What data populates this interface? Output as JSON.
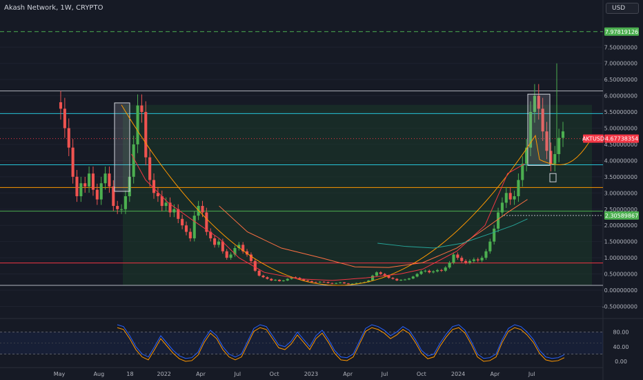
{
  "header": {
    "title": "Akash Network, 1W, CRYPTO",
    "currency_button": "USD"
  },
  "price_axis": {
    "ticks": [
      {
        "v": 7.5,
        "label": "7.50000000"
      },
      {
        "v": 7.0,
        "label": "7.00000000"
      },
      {
        "v": 6.5,
        "label": "6.50000000"
      },
      {
        "v": 6.0,
        "label": "6.00000000"
      },
      {
        "v": 5.5,
        "label": "5.50000000"
      },
      {
        "v": 5.0,
        "label": "5.00000000"
      },
      {
        "v": 4.5,
        "label": "4.50000000"
      },
      {
        "v": 4.0,
        "label": "4.00000000"
      },
      {
        "v": 3.5,
        "label": "3.50000000"
      },
      {
        "v": 3.0,
        "label": "3.00000000"
      },
      {
        "v": 2.5,
        "label": "2.50000000"
      },
      {
        "v": 2.0,
        "label": "2.00000000"
      },
      {
        "v": 1.5,
        "label": "1.50000000"
      },
      {
        "v": 1.0,
        "label": "1.00000000"
      },
      {
        "v": 0.5,
        "label": "0.50000000"
      },
      {
        "v": 0.0,
        "label": "0.00000000"
      },
      {
        "v": -0.5,
        "label": "-0.50000000"
      }
    ],
    "tags": [
      {
        "name": "target-price-tag",
        "v": 7.979,
        "label": "7.97819126",
        "color": "#4caf50"
      },
      {
        "name": "current-price-tag",
        "v": 4.677,
        "label": "4.67738354",
        "color": "#f23645",
        "prefix": "AKTUSD"
      },
      {
        "name": "support-price-tag",
        "v": 2.305,
        "label": "2.30589867",
        "color": "#4caf50"
      }
    ]
  },
  "oscillator_axis": {
    "ticks": [
      {
        "v": 80,
        "label": "80.00"
      },
      {
        "v": 40,
        "label": "40.00"
      },
      {
        "v": 0,
        "label": "0.00"
      }
    ]
  },
  "time_axis": {
    "labels": [
      {
        "t": 0,
        "label": "May"
      },
      {
        "t": 14,
        "label": "Aug"
      },
      {
        "t": 25,
        "label": "18"
      },
      {
        "t": 37,
        "label": "2022"
      },
      {
        "t": 50,
        "label": "Apr"
      },
      {
        "t": 63,
        "label": "Jul"
      },
      {
        "t": 76,
        "label": "Oct"
      },
      {
        "t": 89,
        "label": "2023"
      },
      {
        "t": 102,
        "label": "Apr"
      },
      {
        "t": 115,
        "label": "Jul"
      },
      {
        "t": 128,
        "label": "Oct"
      },
      {
        "t": 141,
        "label": "2024"
      },
      {
        "t": 154,
        "label": "Apr"
      },
      {
        "t": 167,
        "label": "Jul"
      }
    ]
  },
  "colors": {
    "up": "#26a69a",
    "down": "#ef5350",
    "up_bright": "#4caf50",
    "level_green": "#4caf50",
    "level_cyan": "#26c6da",
    "level_orange": "#ff9800",
    "level_red": "#f23645",
    "level_white": "#b2b5be",
    "curve": "#ff9800",
    "ma_red": "#f23645",
    "ma_orange": "#ff7043",
    "ma_teal": "#26a69a"
  }
}
